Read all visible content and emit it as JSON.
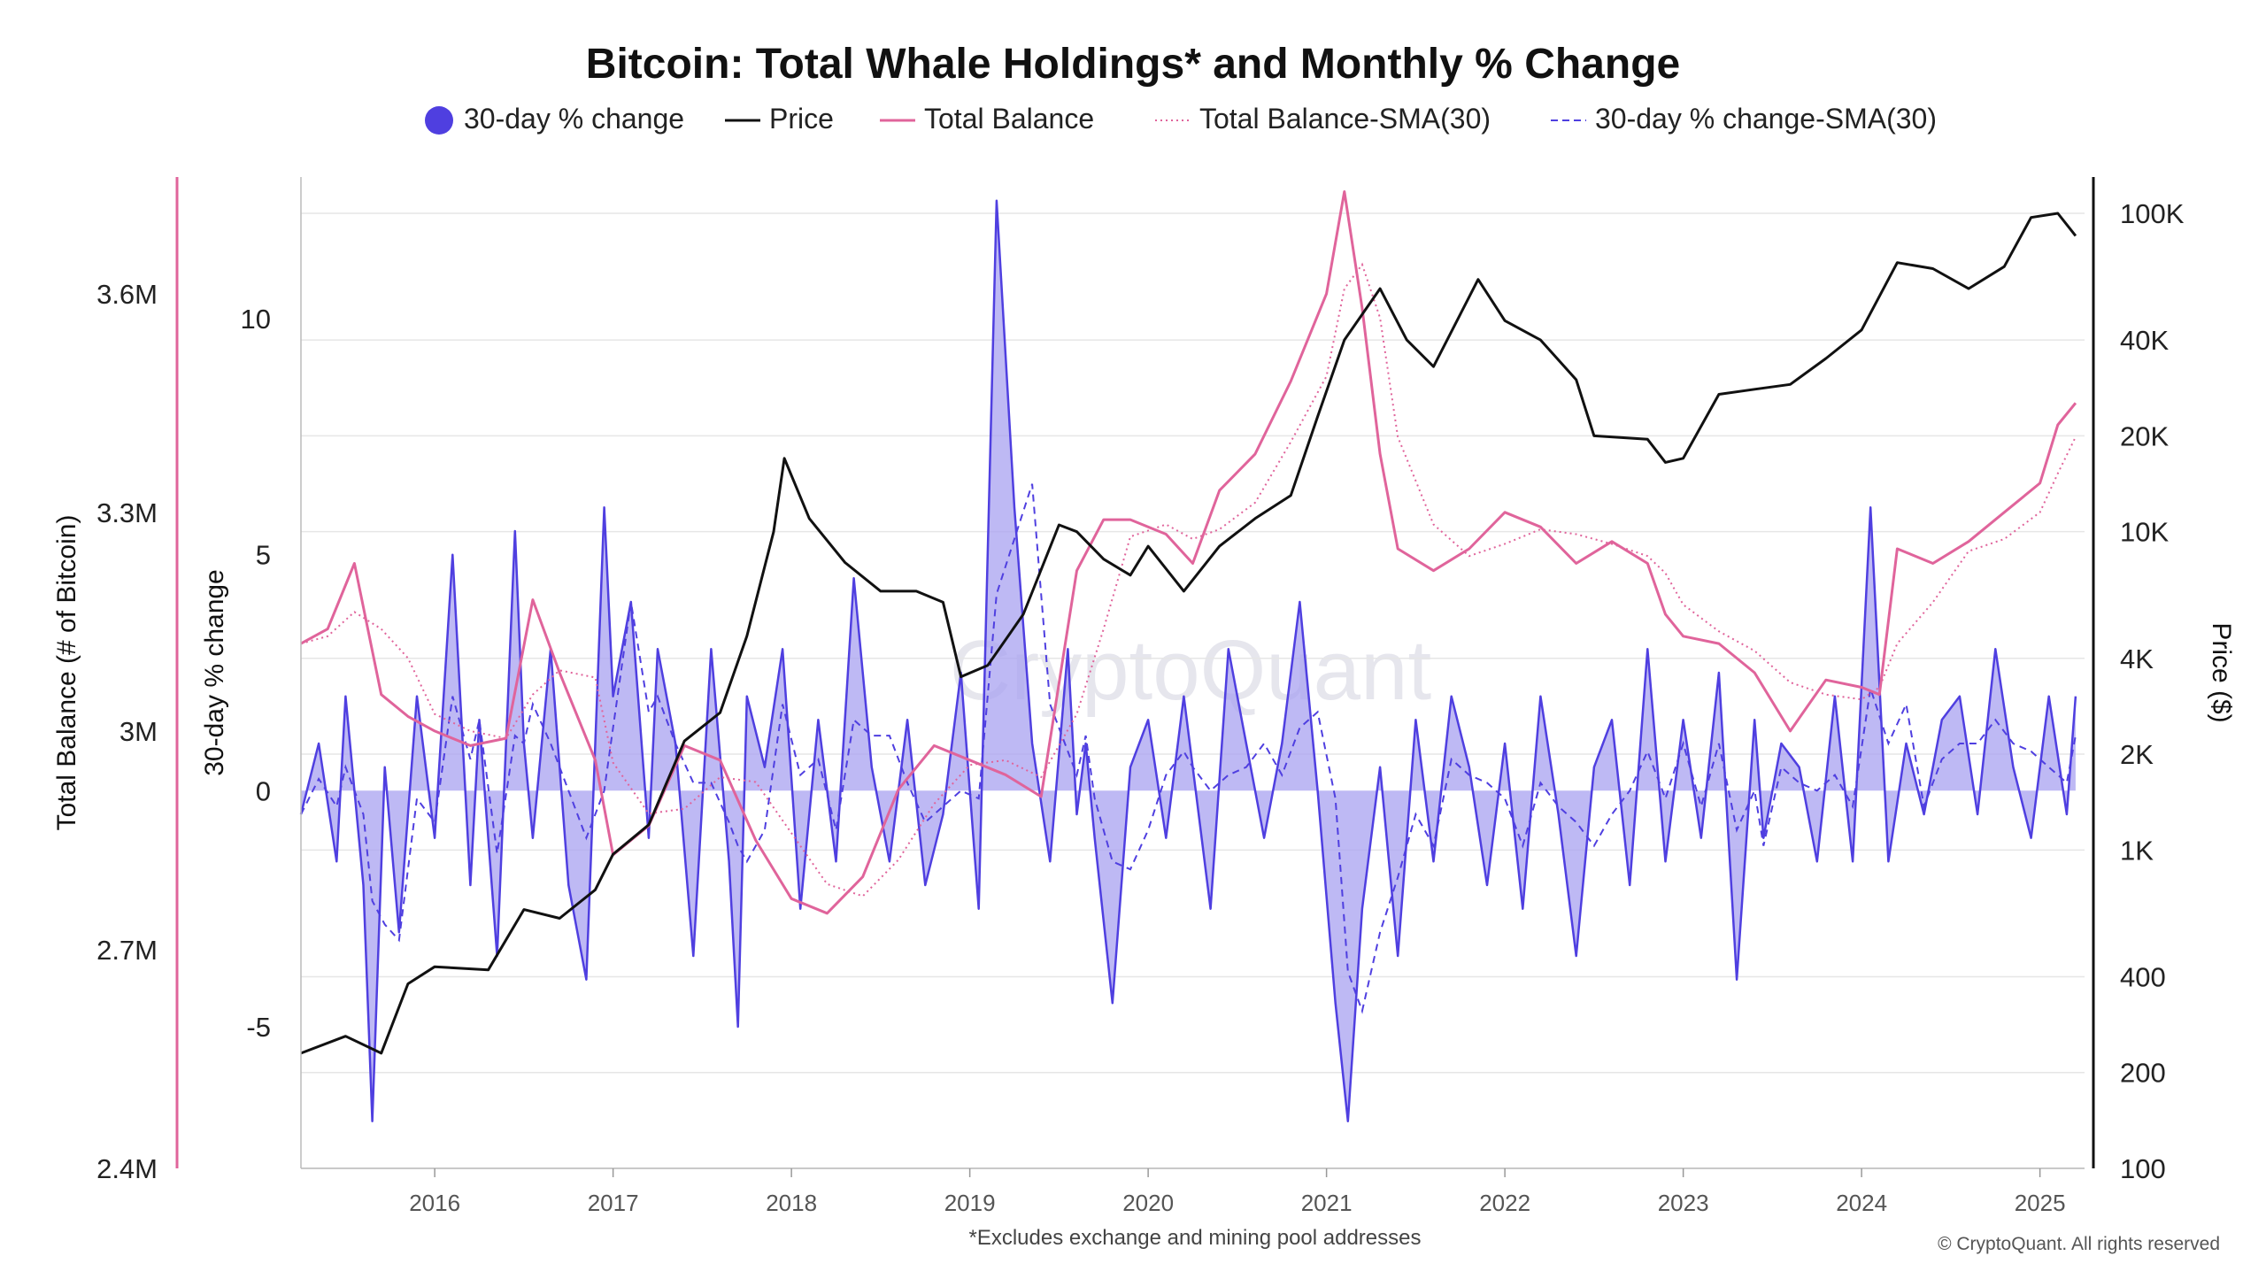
{
  "chart_data": {
    "type": "line",
    "title": "Bitcoin: Total Whale Holdings* and Monthly % Change",
    "footnote": "*Excludes exchange and mining pool addresses",
    "copyright": "© CryptoQuant. All rights reserved",
    "watermark": "CryptoQuant",
    "legend": [
      {
        "label": "30-day % change",
        "style": "dot",
        "color": "#4f3fe0"
      },
      {
        "label": "Price",
        "style": "line",
        "color": "#111111"
      },
      {
        "label": "Total Balance",
        "style": "line",
        "color": "#e0649b"
      },
      {
        "label": "Total Balance-SMA(30)",
        "style": "dotted",
        "color": "#e0649b"
      },
      {
        "label": "30-day % change-SMA(30)",
        "style": "dashed",
        "color": "#4f3fe0"
      }
    ],
    "legend_position": "top-center",
    "grid": true,
    "axes": {
      "x": {
        "ticks": [
          "2016",
          "2017",
          "2018",
          "2019",
          "2020",
          "2021",
          "2022",
          "2023",
          "2024",
          "2025"
        ],
        "range": [
          2015.25,
          2025.25
        ]
      },
      "y_balance": {
        "label": "Total Balance (# of Bitcoin)",
        "ticks": [
          "3.6M",
          "3.3M",
          "3M",
          "2.7M",
          "2.4M"
        ],
        "tick_values": [
          3600000,
          3300000,
          3000000,
          2700000,
          2400000
        ],
        "range": [
          2400000,
          3760000
        ]
      },
      "y_change": {
        "label": "30-day % change",
        "ticks": [
          "10",
          "5",
          "0",
          "-5"
        ],
        "tick_values": [
          10,
          5,
          0,
          -5
        ],
        "range": [
          -8,
          13
        ]
      },
      "y_price": {
        "label": "Price ($)",
        "scale": "log",
        "ticks": [
          "100K",
          "40K",
          "20K",
          "10K",
          "4K",
          "2K",
          "1K",
          "400",
          "200",
          "100"
        ],
        "tick_values": [
          100000,
          40000,
          20000,
          10000,
          4000,
          2000,
          1000,
          400,
          200,
          100
        ],
        "range": [
          100,
          130000
        ]
      }
    },
    "series": [
      {
        "name": "Price",
        "axis": "price",
        "color": "#111111",
        "x": [
          2015.25,
          2015.5,
          2015.7,
          2015.85,
          2016.0,
          2016.3,
          2016.5,
          2016.7,
          2016.9,
          2017.0,
          2017.2,
          2017.4,
          2017.6,
          2017.75,
          2017.9,
          2017.96,
          2018.1,
          2018.3,
          2018.5,
          2018.7,
          2018.85,
          2018.95,
          2019.1,
          2019.3,
          2019.5,
          2019.6,
          2019.75,
          2019.9,
          2020.0,
          2020.2,
          2020.4,
          2020.6,
          2020.8,
          2020.95,
          2021.1,
          2021.3,
          2021.45,
          2021.6,
          2021.85,
          2022.0,
          2022.2,
          2022.4,
          2022.5,
          2022.8,
          2022.9,
          2023.0,
          2023.2,
          2023.4,
          2023.6,
          2023.8,
          2024.0,
          2024.2,
          2024.4,
          2024.6,
          2024.8,
          2024.95,
          2025.1,
          2025.2
        ],
        "values": [
          230,
          260,
          230,
          380,
          430,
          420,
          650,
          610,
          750,
          970,
          1200,
          2200,
          2700,
          4700,
          10000,
          17000,
          11000,
          8000,
          6500,
          6500,
          6000,
          3500,
          3800,
          5500,
          10500,
          10000,
          8200,
          7300,
          9000,
          6500,
          9000,
          11000,
          13000,
          23000,
          40000,
          58000,
          40000,
          33000,
          62000,
          46000,
          40000,
          30000,
          20000,
          19500,
          16500,
          17000,
          27000,
          28000,
          29000,
          35000,
          43000,
          70000,
          67000,
          58000,
          68000,
          97000,
          100000,
          85000
        ]
      },
      {
        "name": "Total Balance",
        "axis": "balance",
        "color": "#e0649b",
        "x": [
          2015.25,
          2015.4,
          2015.55,
          2015.7,
          2015.85,
          2016.0,
          2016.2,
          2016.4,
          2016.55,
          2016.7,
          2016.9,
          2017.0,
          2017.2,
          2017.4,
          2017.6,
          2017.8,
          2018.0,
          2018.2,
          2018.4,
          2018.6,
          2018.8,
          2019.0,
          2019.2,
          2019.4,
          2019.6,
          2019.75,
          2019.9,
          2020.1,
          2020.25,
          2020.4,
          2020.6,
          2020.8,
          2021.0,
          2021.1,
          2021.2,
          2021.3,
          2021.4,
          2021.6,
          2021.8,
          2022.0,
          2022.2,
          2022.4,
          2022.6,
          2022.8,
          2022.9,
          2023.0,
          2023.2,
          2023.4,
          2023.6,
          2023.8,
          2024.0,
          2024.1,
          2024.2,
          2024.4,
          2024.6,
          2024.8,
          2025.0,
          2025.1,
          2025.2
        ],
        "values": [
          3120000,
          3140000,
          3230000,
          3050000,
          3020000,
          3000000,
          2980000,
          2990000,
          3180000,
          3080000,
          2960000,
          2830000,
          2870000,
          2980000,
          2960000,
          2850000,
          2770000,
          2750000,
          2800000,
          2920000,
          2980000,
          2960000,
          2940000,
          2910000,
          3220000,
          3290000,
          3290000,
          3270000,
          3230000,
          3330000,
          3380000,
          3480000,
          3600000,
          3740000,
          3580000,
          3380000,
          3250000,
          3220000,
          3250000,
          3300000,
          3280000,
          3230000,
          3260000,
          3230000,
          3160000,
          3130000,
          3120000,
          3080000,
          3000000,
          3070000,
          3060000,
          3050000,
          3250000,
          3230000,
          3260000,
          3300000,
          3340000,
          3420000,
          3450000
        ]
      },
      {
        "name": "30-day % change",
        "axis": "change",
        "color": "#4f3fe0",
        "fill": "#a8a2f0",
        "x": [
          2015.25,
          2015.35,
          2015.45,
          2015.5,
          2015.6,
          2015.65,
          2015.72,
          2015.8,
          2015.9,
          2016.0,
          2016.1,
          2016.2,
          2016.25,
          2016.35,
          2016.45,
          2016.5,
          2016.55,
          2016.65,
          2016.75,
          2016.85,
          2016.95,
          2017.0,
          2017.1,
          2017.2,
          2017.25,
          2017.35,
          2017.45,
          2017.55,
          2017.65,
          2017.7,
          2017.75,
          2017.85,
          2017.95,
          2018.05,
          2018.15,
          2018.25,
          2018.35,
          2018.45,
          2018.55,
          2018.65,
          2018.75,
          2018.85,
          2018.95,
          2019.05,
          2019.15,
          2019.25,
          2019.35,
          2019.45,
          2019.55,
          2019.6,
          2019.65,
          2019.7,
          2019.8,
          2019.9,
          2020.0,
          2020.1,
          2020.2,
          2020.25,
          2020.35,
          2020.45,
          2020.55,
          2020.65,
          2020.75,
          2020.85,
          2020.95,
          2021.05,
          2021.12,
          2021.2,
          2021.3,
          2021.4,
          2021.5,
          2021.6,
          2021.7,
          2021.8,
          2021.9,
          2022.0,
          2022.1,
          2022.2,
          2022.3,
          2022.4,
          2022.5,
          2022.6,
          2022.7,
          2022.8,
          2022.9,
          2023.0,
          2023.1,
          2023.2,
          2023.3,
          2023.4,
          2023.45,
          2023.55,
          2023.65,
          2023.75,
          2023.85,
          2023.95,
          2024.05,
          2024.15,
          2024.25,
          2024.35,
          2024.45,
          2024.55,
          2024.65,
          2024.75,
          2024.85,
          2024.95,
          2025.05,
          2025.15,
          2025.2
        ],
        "values": [
          -0.5,
          1.0,
          -1.5,
          2.0,
          -2.0,
          -7.0,
          0.5,
          -3.0,
          2.0,
          -1.0,
          5.0,
          -2.0,
          1.5,
          -3.5,
          5.5,
          1.0,
          -1.0,
          3.0,
          -2.0,
          -4.0,
          6.0,
          2.0,
          4.0,
          -1.0,
          3.0,
          1.0,
          -3.5,
          3.0,
          -1.5,
          -5.0,
          2.0,
          0.5,
          3.0,
          -2.5,
          1.5,
          -1.5,
          4.5,
          0.5,
          -1.5,
          1.5,
          -2.0,
          -0.5,
          2.5,
          -2.5,
          12.5,
          6.0,
          1.0,
          -1.5,
          3.0,
          -0.5,
          1.0,
          -1.0,
          -4.5,
          0.5,
          1.5,
          -1.0,
          2.0,
          0.5,
          -2.5,
          3.0,
          1.0,
          -1.0,
          1.0,
          4.0,
          0.0,
          -4.5,
          -7.0,
          -2.5,
          0.5,
          -3.5,
          1.5,
          -1.5,
          2.0,
          0.5,
          -2.0,
          1.0,
          -2.5,
          2.0,
          -0.5,
          -3.5,
          0.5,
          1.5,
          -2.0,
          3.0,
          -1.5,
          1.5,
          -1.0,
          2.5,
          -4.0,
          1.5,
          -1.0,
          1.0,
          0.5,
          -1.5,
          2.0,
          -1.5,
          6.0,
          -1.5,
          1.0,
          -0.5,
          1.5,
          2.0,
          -0.5,
          3.0,
          0.5,
          -1.0,
          2.0,
          -0.5,
          2.0
        ]
      }
    ]
  }
}
